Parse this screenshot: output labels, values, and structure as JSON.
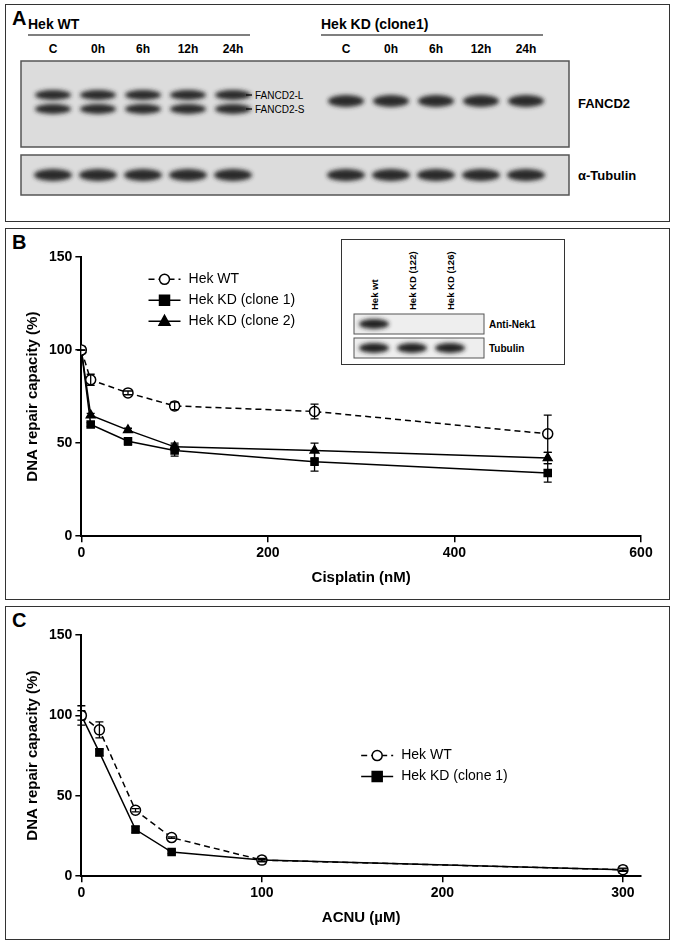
{
  "panel_a": {
    "letter": "A",
    "groups": [
      {
        "name": "Hek WT",
        "lanes": [
          "C",
          "0h",
          "6h",
          "12h",
          "24h"
        ]
      },
      {
        "name": "Hek KD (clone1)",
        "lanes": [
          "C",
          "0h",
          "6h",
          "12h",
          "24h"
        ]
      }
    ],
    "band_labels": [
      "FANCD2-L",
      "FANCD2-S"
    ],
    "blots": [
      "FANCD2",
      "α-Tubulin"
    ]
  },
  "panel_b_inset": {
    "lanes": [
      "Hek wt",
      "Hek KD (122)",
      "Hek KD (126)"
    ],
    "blots": [
      "Anti-Nek1",
      "Tubulin"
    ]
  },
  "chart_data": [
    {
      "title": "B",
      "type": "line",
      "x_label": "Cisplatin (nM)",
      "y_label": "DNA repair capacity (%)",
      "x": [
        0,
        10,
        50,
        100,
        250,
        500
      ],
      "series": [
        {
          "name": "Hek WT",
          "color": "#000000",
          "marker": "circle_open",
          "line_style": "dashed",
          "values": [
            100,
            84,
            77,
            70,
            67,
            55
          ],
          "errors": [
            0,
            3,
            1,
            2,
            4,
            10
          ]
        },
        {
          "name": "Hek KD (clone 1)",
          "color": "#000000",
          "marker": "square",
          "line_style": "solid",
          "values": [
            100,
            60,
            51,
            46,
            40,
            34
          ],
          "errors": [
            0,
            1,
            2,
            3,
            5,
            5
          ]
        },
        {
          "name": "Hek KD (clone 2)",
          "color": "#000000",
          "marker": "triangle",
          "line_style": "solid",
          "values": [
            100,
            65,
            57,
            48,
            46,
            42
          ],
          "errors": [
            0,
            1,
            1,
            2,
            4,
            3
          ]
        }
      ],
      "xlim": [
        0,
        600
      ],
      "xticks": [
        0,
        200,
        400,
        600
      ],
      "ylim": [
        0,
        150
      ],
      "yticks": [
        0,
        50,
        100,
        150
      ],
      "grid": false,
      "legend": "upper left"
    },
    {
      "title": "C",
      "type": "line",
      "x_label": "ACNU (µM)",
      "y_label": "DNA repair capacity (%)",
      "x": [
        0,
        10,
        30,
        50,
        100,
        300
      ],
      "series": [
        {
          "name": "Hek WT",
          "color": "#000000",
          "marker": "circle_open",
          "line_style": "dashed",
          "values": [
            100,
            91,
            41,
            24,
            10,
            4
          ],
          "errors": [
            6,
            5,
            1,
            0.5,
            0.5,
            0.5
          ]
        },
        {
          "name": "Hek KD (clone 1)",
          "color": "#000000",
          "marker": "square",
          "line_style": "solid",
          "values": [
            100,
            77,
            29,
            15,
            10,
            4
          ],
          "errors": [
            3,
            2,
            2,
            1,
            1,
            1
          ]
        }
      ],
      "xlim": [
        0,
        310
      ],
      "xticks": [
        0,
        100,
        200,
        300
      ],
      "ylim": [
        0,
        150
      ],
      "yticks": [
        0,
        50,
        100,
        150
      ],
      "grid": false,
      "legend": "center right"
    }
  ]
}
